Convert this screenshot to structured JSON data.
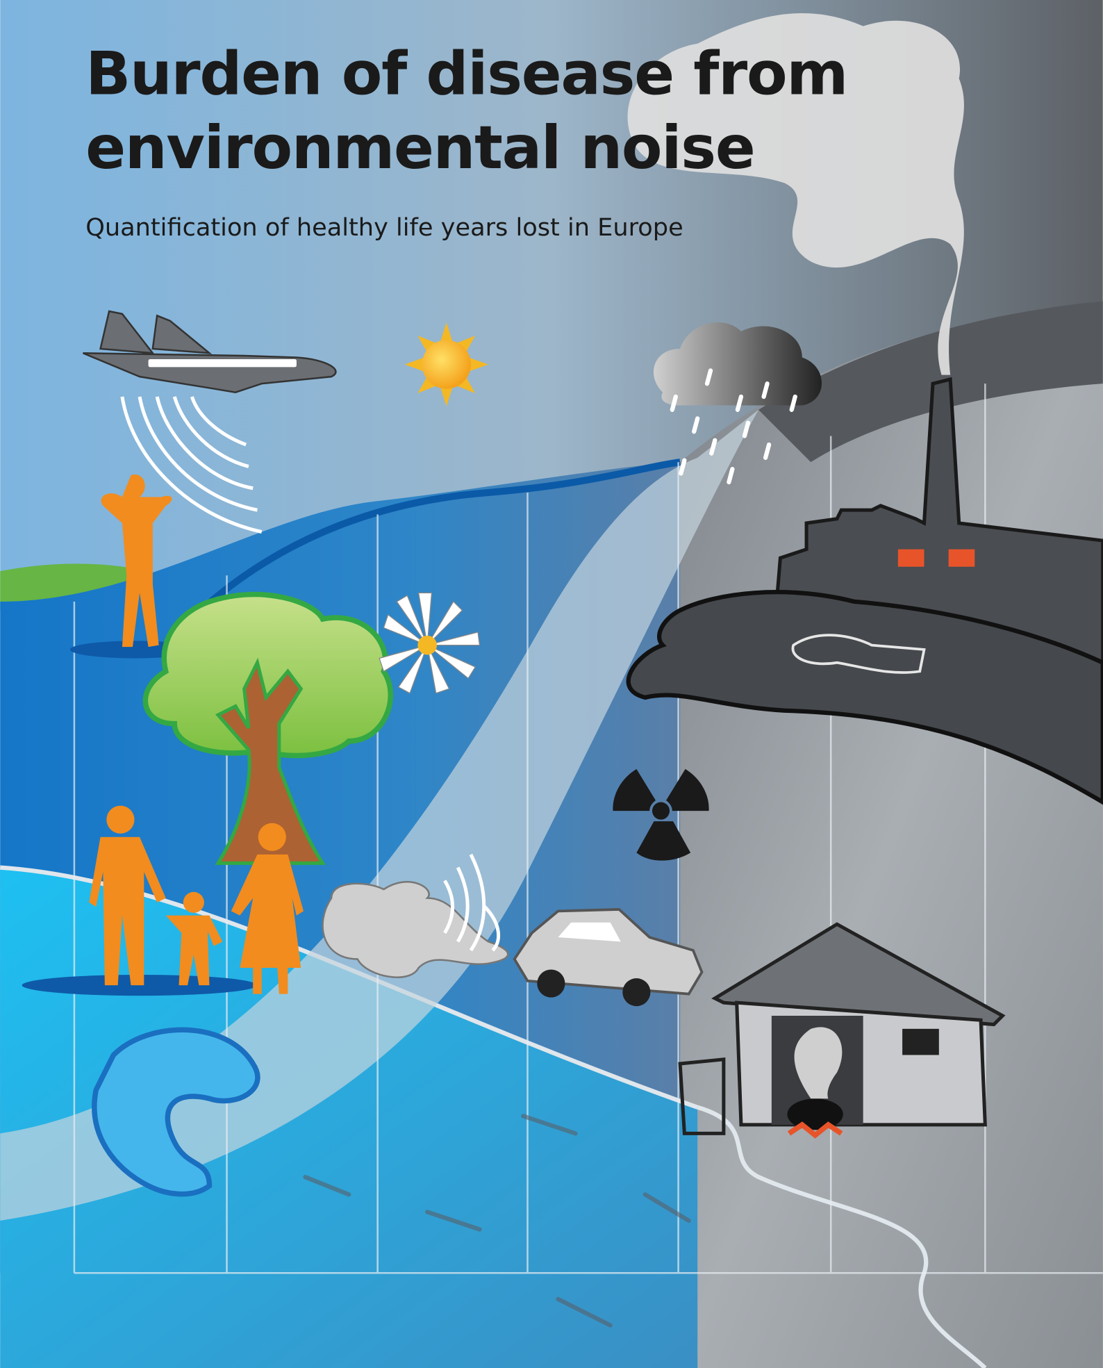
{
  "cover": {
    "title_lines": [
      "Burden of disease from",
      "environmental noise"
    ],
    "subtitle": "Quantification of healthy life years lost in Europe"
  }
}
